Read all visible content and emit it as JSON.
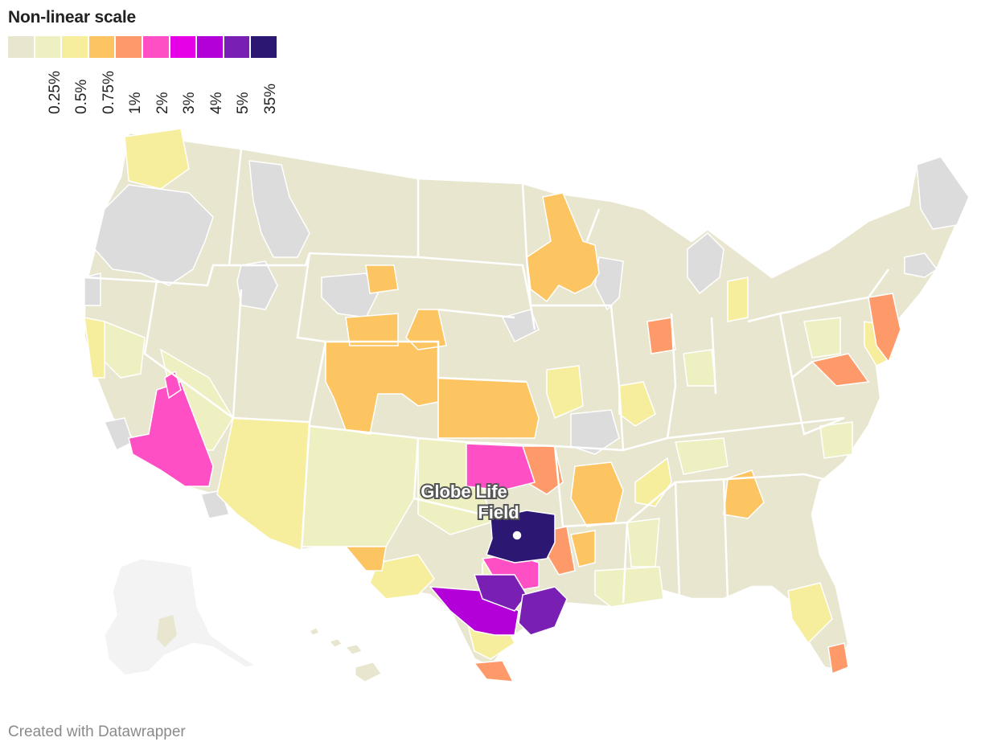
{
  "title": "Non-linear scale",
  "legend": {
    "colors": [
      "#e8e6cf",
      "#eef0c2",
      "#f6ee9c",
      "#fdc561",
      "#fe9a6a",
      "#fe4fc4",
      "#e600e6",
      "#b300d9",
      "#7a1fb3",
      "#2c1873"
    ],
    "labels": [
      "0.25%",
      "0.5%",
      "0.75%",
      "1%",
      "2%",
      "3%",
      "4%",
      "5%",
      "35%"
    ]
  },
  "marker": {
    "label_line1": "Globe Life",
    "label_line2": "Field"
  },
  "footer": "Created with Datawrapper",
  "colors": {
    "nodata": "#dcdcdc",
    "border": "#ffffff",
    "outside": "#f3f3f3"
  }
}
